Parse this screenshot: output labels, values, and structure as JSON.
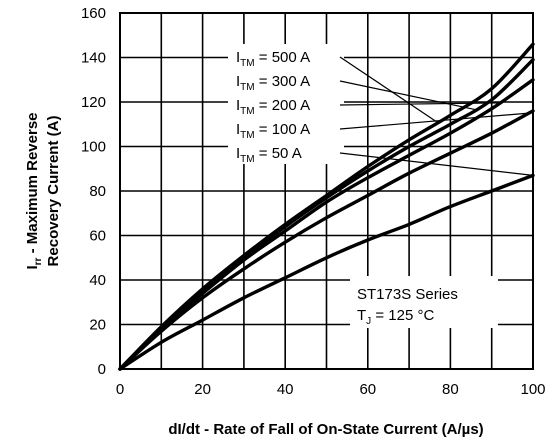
{
  "chart_data": {
    "type": "line",
    "xlabel": "dI/dt - Rate of Fall of On-State Current (A/µs)",
    "ylabel_line1": "I",
    "ylabel_sub": "rr",
    "ylabel_rest": " - Maximum Reverse",
    "ylabel_line2": "Recovery Current (A)",
    "xlim": [
      0,
      100
    ],
    "ylim": [
      0,
      160
    ],
    "x_ticks": [
      "0",
      "20",
      "40",
      "60",
      "80",
      "100"
    ],
    "y_ticks": [
      "0",
      "20",
      "40",
      "60",
      "80",
      "100",
      "120",
      "140",
      "160"
    ],
    "grid": true,
    "series": [
      {
        "name_main": "I",
        "name_sub": "TM",
        "name_rest": " = 500 A",
        "x": [
          0,
          10,
          20,
          30,
          40,
          50,
          60,
          70,
          80,
          90,
          100
        ],
        "values": [
          0,
          19,
          36,
          51,
          65,
          78,
          91,
          103,
          114,
          126,
          146
        ]
      },
      {
        "name_main": "I",
        "name_sub": "TM",
        "name_rest": " = 300 A",
        "x": [
          0,
          10,
          20,
          30,
          40,
          50,
          60,
          70,
          80,
          90,
          100
        ],
        "values": [
          0,
          18.5,
          35,
          50,
          64,
          77,
          89,
          100,
          110,
          121,
          139
        ]
      },
      {
        "name_main": "I",
        "name_sub": "TM",
        "name_rest": " = 200 A",
        "x": [
          0,
          10,
          20,
          30,
          40,
          50,
          60,
          70,
          80,
          90,
          100
        ],
        "values": [
          0,
          18,
          34,
          49,
          62,
          75,
          86,
          96,
          106,
          117,
          130
        ]
      },
      {
        "name_main": "I",
        "name_sub": "TM",
        "name_rest": " = 100 A",
        "x": [
          0,
          10,
          20,
          30,
          40,
          50,
          60,
          70,
          80,
          90,
          100
        ],
        "values": [
          0,
          17,
          32,
          45,
          57,
          68,
          78,
          88,
          97,
          106,
          116
        ]
      },
      {
        "name_main": "I",
        "name_sub": "TM",
        "name_rest": " = 50 A",
        "x": [
          0,
          10,
          20,
          30,
          40,
          50,
          60,
          70,
          80,
          90,
          100
        ],
        "values": [
          0,
          12,
          22,
          32,
          41,
          50,
          58,
          65,
          73,
          80,
          87
        ]
      }
    ],
    "annotation": {
      "line1": "ST173S Series",
      "line2_main": "T",
      "line2_sub": "J",
      "line2_rest": " = 125 °C"
    }
  }
}
